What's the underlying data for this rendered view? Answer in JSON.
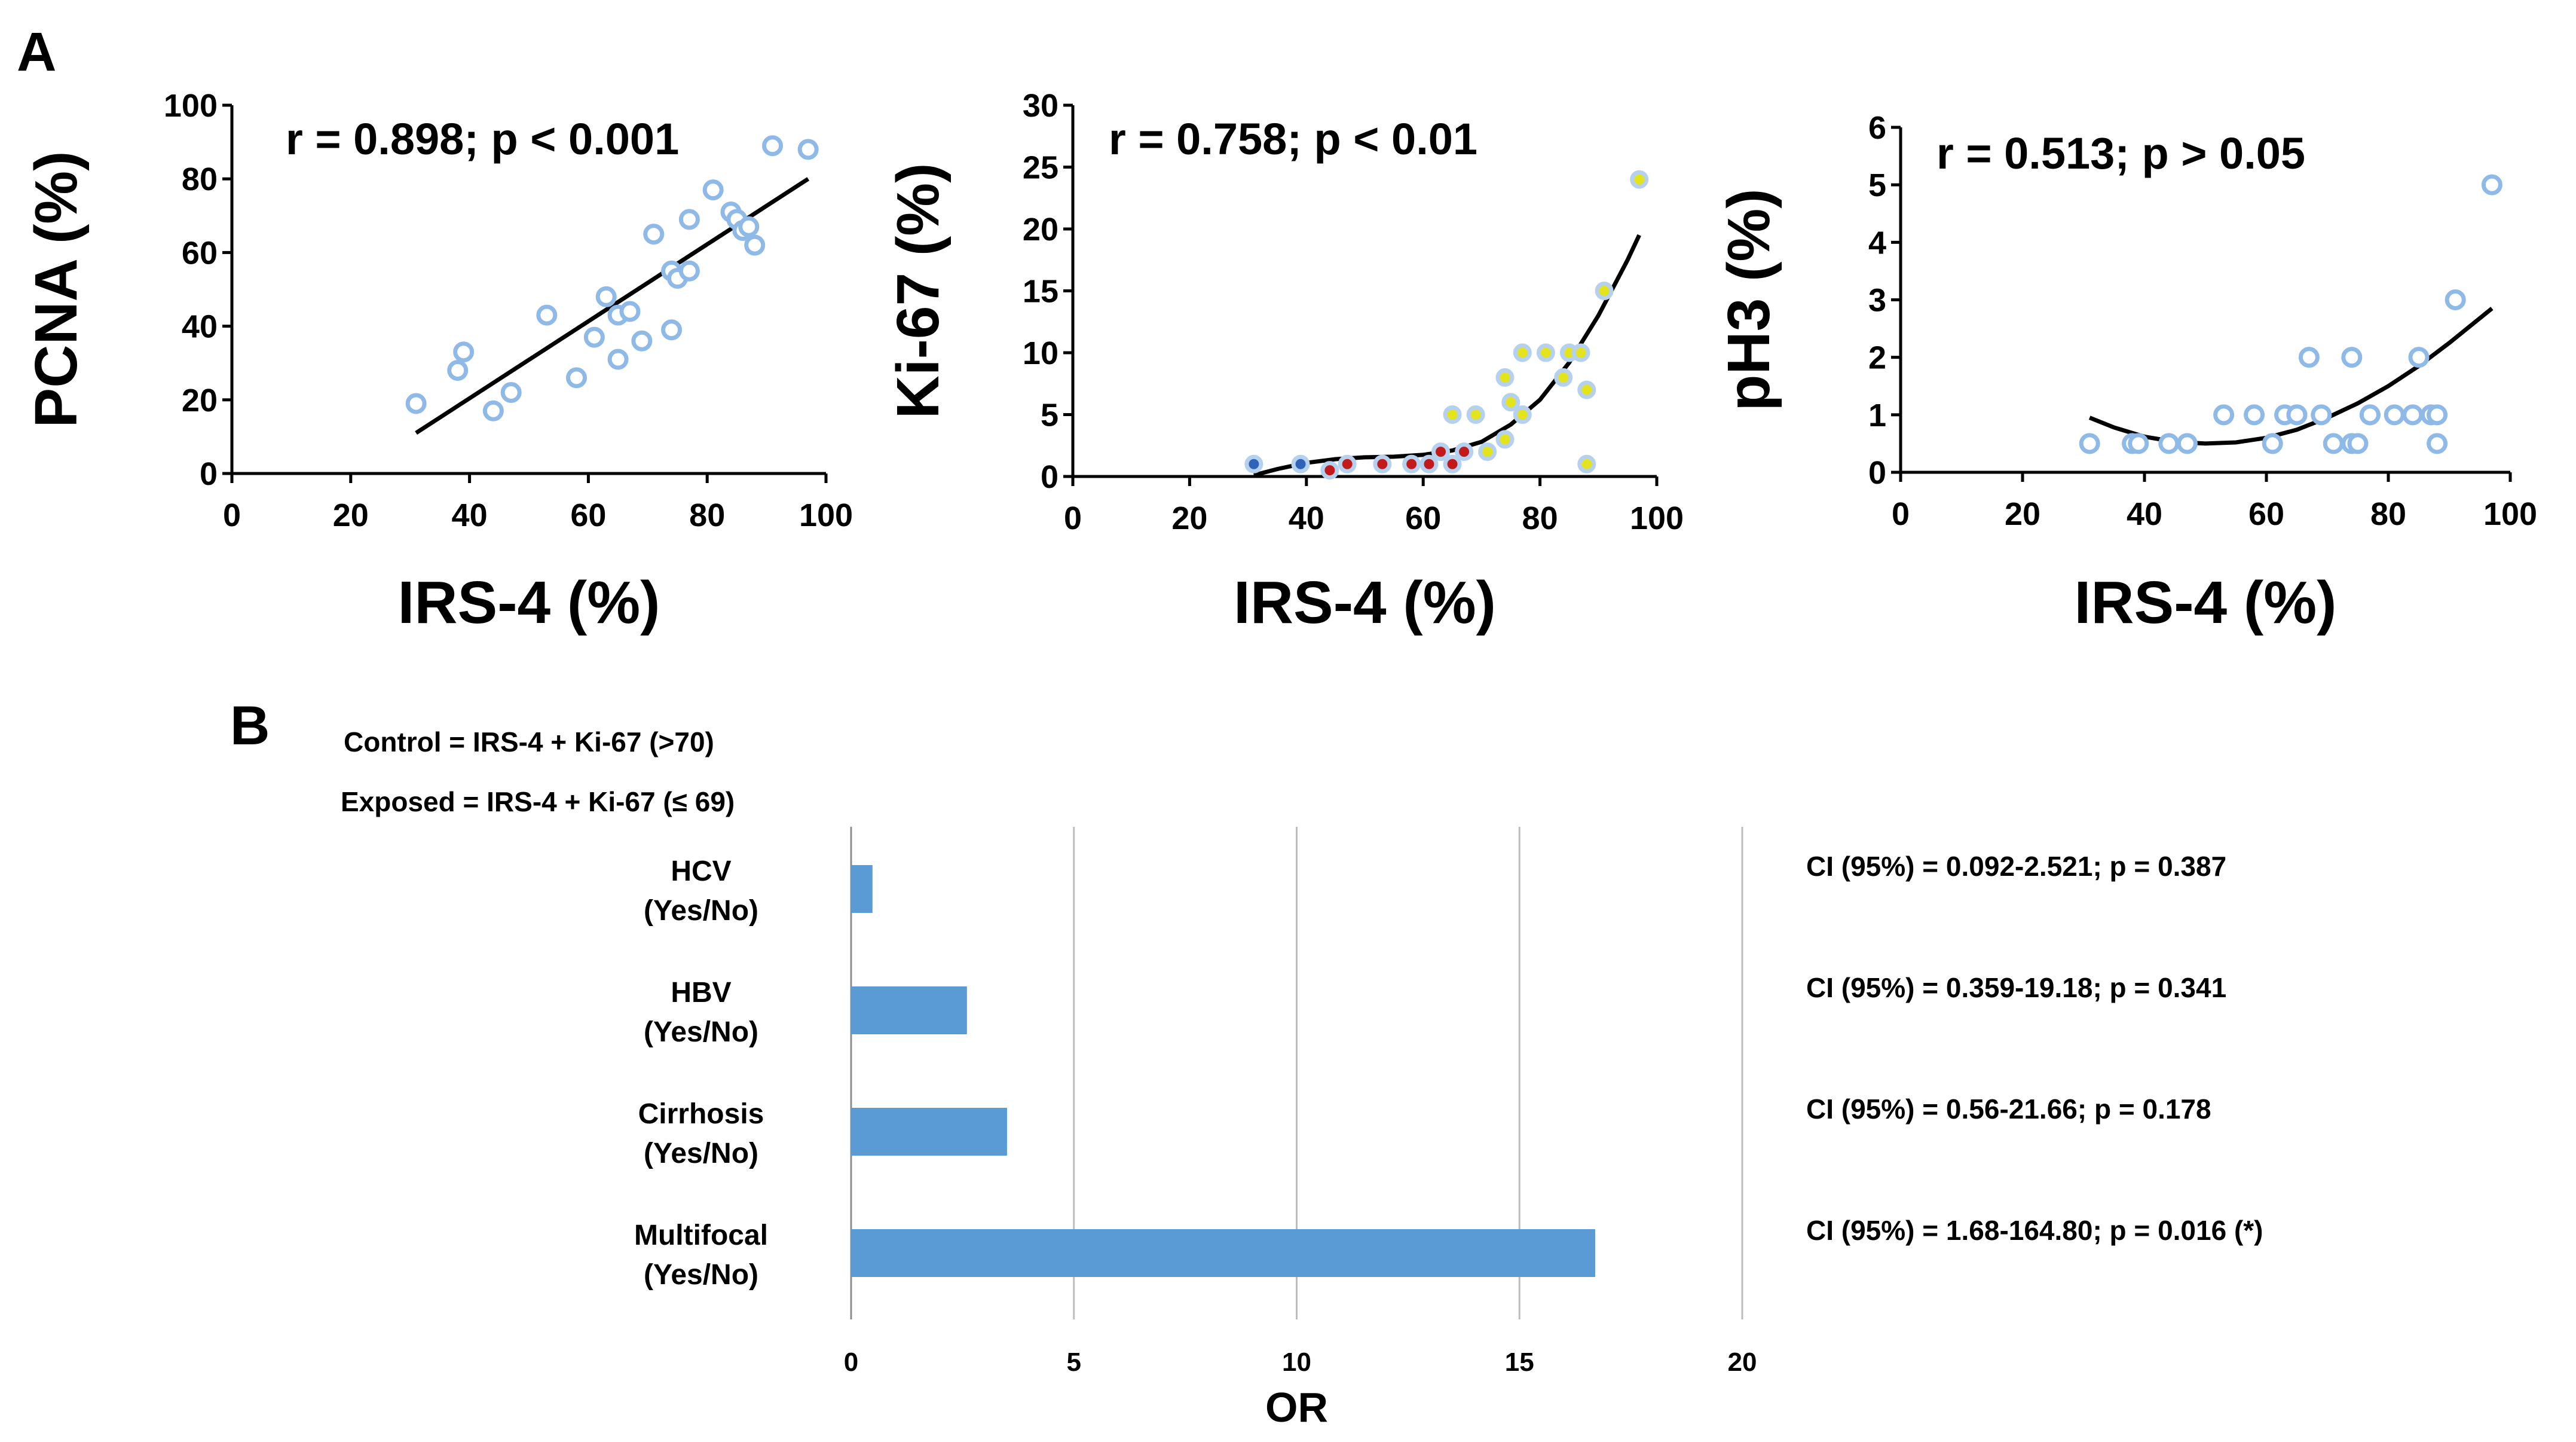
{
  "panel_a_label": "A",
  "panel_b_label": "B",
  "chart_data": [
    {
      "type": "scatter",
      "title": "r = 0.898; p < 0.001",
      "xlabel": "IRS-4 (%)",
      "ylabel": "PCNA (%)",
      "xlim": [
        0,
        100
      ],
      "ylim": [
        0,
        100
      ],
      "xticks": [
        "0",
        "20",
        "40",
        "60",
        "80",
        "100"
      ],
      "yticks": [
        "0",
        "20",
        "40",
        "60",
        "80",
        "100"
      ],
      "fit": "linear",
      "fit_line": [
        [
          31,
          11
        ],
        [
          97,
          80
        ]
      ],
      "point_color": "#8fb9e6",
      "points": [
        [
          31,
          19
        ],
        [
          38,
          28
        ],
        [
          39,
          33
        ],
        [
          44,
          17
        ],
        [
          47,
          22
        ],
        [
          53,
          43
        ],
        [
          58,
          26
        ],
        [
          61,
          37
        ],
        [
          63,
          48
        ],
        [
          65,
          31
        ],
        [
          65,
          43
        ],
        [
          67,
          44
        ],
        [
          69,
          36
        ],
        [
          71,
          65
        ],
        [
          74,
          39
        ],
        [
          74,
          55
        ],
        [
          75,
          53
        ],
        [
          77,
          69
        ],
        [
          77,
          55
        ],
        [
          81,
          77
        ],
        [
          84,
          71
        ],
        [
          85,
          69
        ],
        [
          86,
          66
        ],
        [
          87,
          67
        ],
        [
          88,
          62
        ],
        [
          91,
          89
        ],
        [
          97,
          88
        ]
      ]
    },
    {
      "type": "scatter",
      "title": "r = 0.758; p < 0.01",
      "xlabel": "IRS-4 (%)",
      "ylabel": "Ki-67 (%)",
      "xlim": [
        0,
        100
      ],
      "ylim": [
        0,
        30
      ],
      "xticks": [
        "0",
        "20",
        "40",
        "60",
        "80",
        "100"
      ],
      "yticks": [
        "0",
        "5",
        "10",
        "15",
        "20",
        "25",
        "30"
      ],
      "fit": "polynomial",
      "fit_line": [
        [
          31,
          0.1
        ],
        [
          35,
          0.6
        ],
        [
          40,
          1.1
        ],
        [
          45,
          1.4
        ],
        [
          50,
          1.55
        ],
        [
          55,
          1.6
        ],
        [
          60,
          1.75
        ],
        [
          65,
          2.1
        ],
        [
          70,
          2.8
        ],
        [
          75,
          4.2
        ],
        [
          80,
          6.2
        ],
        [
          85,
          9.2
        ],
        [
          90,
          13
        ],
        [
          95,
          17.5
        ],
        [
          97,
          19.5
        ]
      ],
      "series": [
        {
          "name": "blue",
          "color": "#2e63b8",
          "points": [
            [
              31,
              1
            ],
            [
              39,
              1
            ]
          ]
        },
        {
          "name": "red",
          "color": "#c21a1a",
          "points": [
            [
              44,
              0.5
            ],
            [
              47,
              1
            ],
            [
              53,
              1
            ],
            [
              58,
              1
            ],
            [
              61,
              1
            ],
            [
              63,
              2
            ],
            [
              65,
              1
            ],
            [
              67,
              2
            ]
          ]
        },
        {
          "name": "yellow",
          "color": "#e3e31e",
          "points": [
            [
              65,
              5
            ],
            [
              69,
              5
            ],
            [
              71,
              2
            ],
            [
              74,
              3
            ],
            [
              74,
              8
            ],
            [
              75,
              6
            ],
            [
              77,
              5
            ],
            [
              77,
              10
            ],
            [
              81,
              10
            ],
            [
              84,
              8
            ],
            [
              85,
              10
            ],
            [
              87,
              10
            ],
            [
              88,
              7
            ],
            [
              88,
              1
            ],
            [
              91,
              15
            ],
            [
              97,
              24
            ]
          ]
        }
      ]
    },
    {
      "type": "scatter",
      "title": "r = 0.513; p > 0.05",
      "xlabel": "IRS-4 (%)",
      "ylabel": "pH3 (%)",
      "xlim": [
        0,
        100
      ],
      "ylim": [
        0,
        6
      ],
      "xticks": [
        "0",
        "20",
        "40",
        "60",
        "80",
        "100"
      ],
      "yticks": [
        "0",
        "1",
        "2",
        "3",
        "4",
        "5",
        "6"
      ],
      "fit": "polynomial",
      "fit_line": [
        [
          31,
          0.95
        ],
        [
          35,
          0.78
        ],
        [
          40,
          0.62
        ],
        [
          45,
          0.53
        ],
        [
          50,
          0.5
        ],
        [
          55,
          0.52
        ],
        [
          60,
          0.6
        ],
        [
          65,
          0.74
        ],
        [
          70,
          0.95
        ],
        [
          75,
          1.2
        ],
        [
          80,
          1.5
        ],
        [
          85,
          1.85
        ],
        [
          90,
          2.25
        ],
        [
          97,
          2.85
        ]
      ],
      "point_color": "#8fb9e6",
      "points": [
        [
          31,
          0.5
        ],
        [
          38,
          0.5
        ],
        [
          39,
          0.5
        ],
        [
          44,
          0.5
        ],
        [
          47,
          0.5
        ],
        [
          53,
          1
        ],
        [
          58,
          1
        ],
        [
          61,
          0.5
        ],
        [
          63,
          1
        ],
        [
          65,
          1
        ],
        [
          65,
          1
        ],
        [
          67,
          2
        ],
        [
          69,
          1
        ],
        [
          71,
          0.5
        ],
        [
          74,
          0.5
        ],
        [
          74,
          2
        ],
        [
          75,
          0.5
        ],
        [
          77,
          1
        ],
        [
          77,
          1
        ],
        [
          81,
          1
        ],
        [
          84,
          1
        ],
        [
          85,
          2
        ],
        [
          87,
          1
        ],
        [
          88,
          1
        ],
        [
          88,
          0.5
        ],
        [
          91,
          3
        ],
        [
          97,
          5
        ]
      ]
    },
    {
      "type": "bar",
      "orientation": "horizontal",
      "title": "",
      "xlabel": "OR",
      "ylabel": "",
      "xlim": [
        0,
        20
      ],
      "xticks": [
        "0",
        "5",
        "10",
        "15",
        "20"
      ],
      "grid": true,
      "bar_color": "#5b9bd5",
      "notes": [
        "Control = IRS-4 + Ki-67 (>70)",
        "Exposed = IRS-4 + Ki-67 (≤ 69)"
      ],
      "categories": [
        [
          "HCV",
          "(Yes/No)"
        ],
        [
          "HBV",
          "(Yes/No)"
        ],
        [
          "Cirrhosis",
          "(Yes/No)"
        ],
        [
          "Multifocal",
          "(Yes/No)"
        ]
      ],
      "values": [
        0.48,
        2.6,
        3.5,
        16.7
      ],
      "annotations": [
        "CI (95%)  = 0.092-2.521; p = 0.387",
        "CI (95%)  = 0.359-19.18; p = 0.341",
        "CI (95%)  = 0.56-21.66; p = 0.178",
        "CI (95%)  = 1.68-164.80; p = 0.016 (*)"
      ]
    }
  ]
}
